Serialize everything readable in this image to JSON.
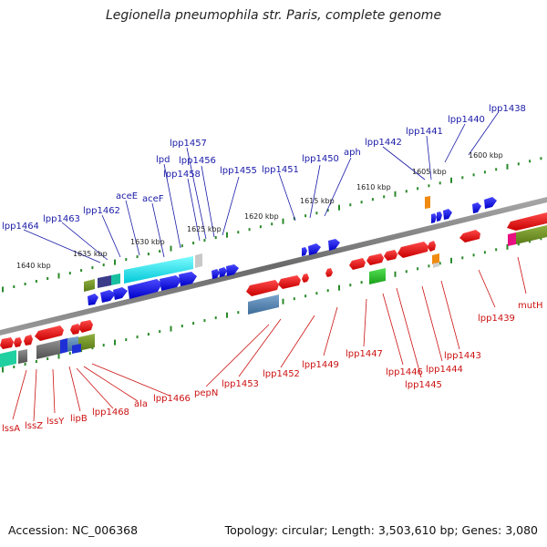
{
  "title": "Legionella pneumophila str. Paris, complete genome",
  "footer": {
    "accession": "Accession: NC_006368",
    "summary": "Topology: circular; Length: 3,503,610 bp; Genes: 3,080"
  },
  "colors": {
    "forward_label": "#1a1aa8",
    "reverse_label": "#cc1111",
    "backbone": "#7a7a7a",
    "ticks": "#2a8a2a"
  },
  "kbp_ticks": [
    "1600 kbp",
    "1605 kbp",
    "1610 kbp",
    "1615 kbp",
    "1620 kbp",
    "1625 kbp",
    "1630 kbp",
    "1635 kbp",
    "1640 kbp"
  ],
  "forward_genes": [
    "lpp1438",
    "lpp1440",
    "lpp1441",
    "lpp1442",
    "aph",
    "lpp1450",
    "lpp1451",
    "lpp1455",
    "lpp1456",
    "lpp1457",
    "lpp1458",
    "lpd",
    "aceF",
    "aceE",
    "lpp1462",
    "lpp1463",
    "lpp1464"
  ],
  "reverse_genes": [
    "mutH",
    "lpp1439",
    "lpp1443",
    "lpp1444",
    "lpp1445",
    "lpp1446",
    "lpp1447",
    "lpp1449",
    "lpp1452",
    "lpp1453",
    "pepN",
    "lpp1466",
    "ala",
    "lpp1468",
    "lipB",
    "lssY",
    "lssZ",
    "lssA"
  ]
}
